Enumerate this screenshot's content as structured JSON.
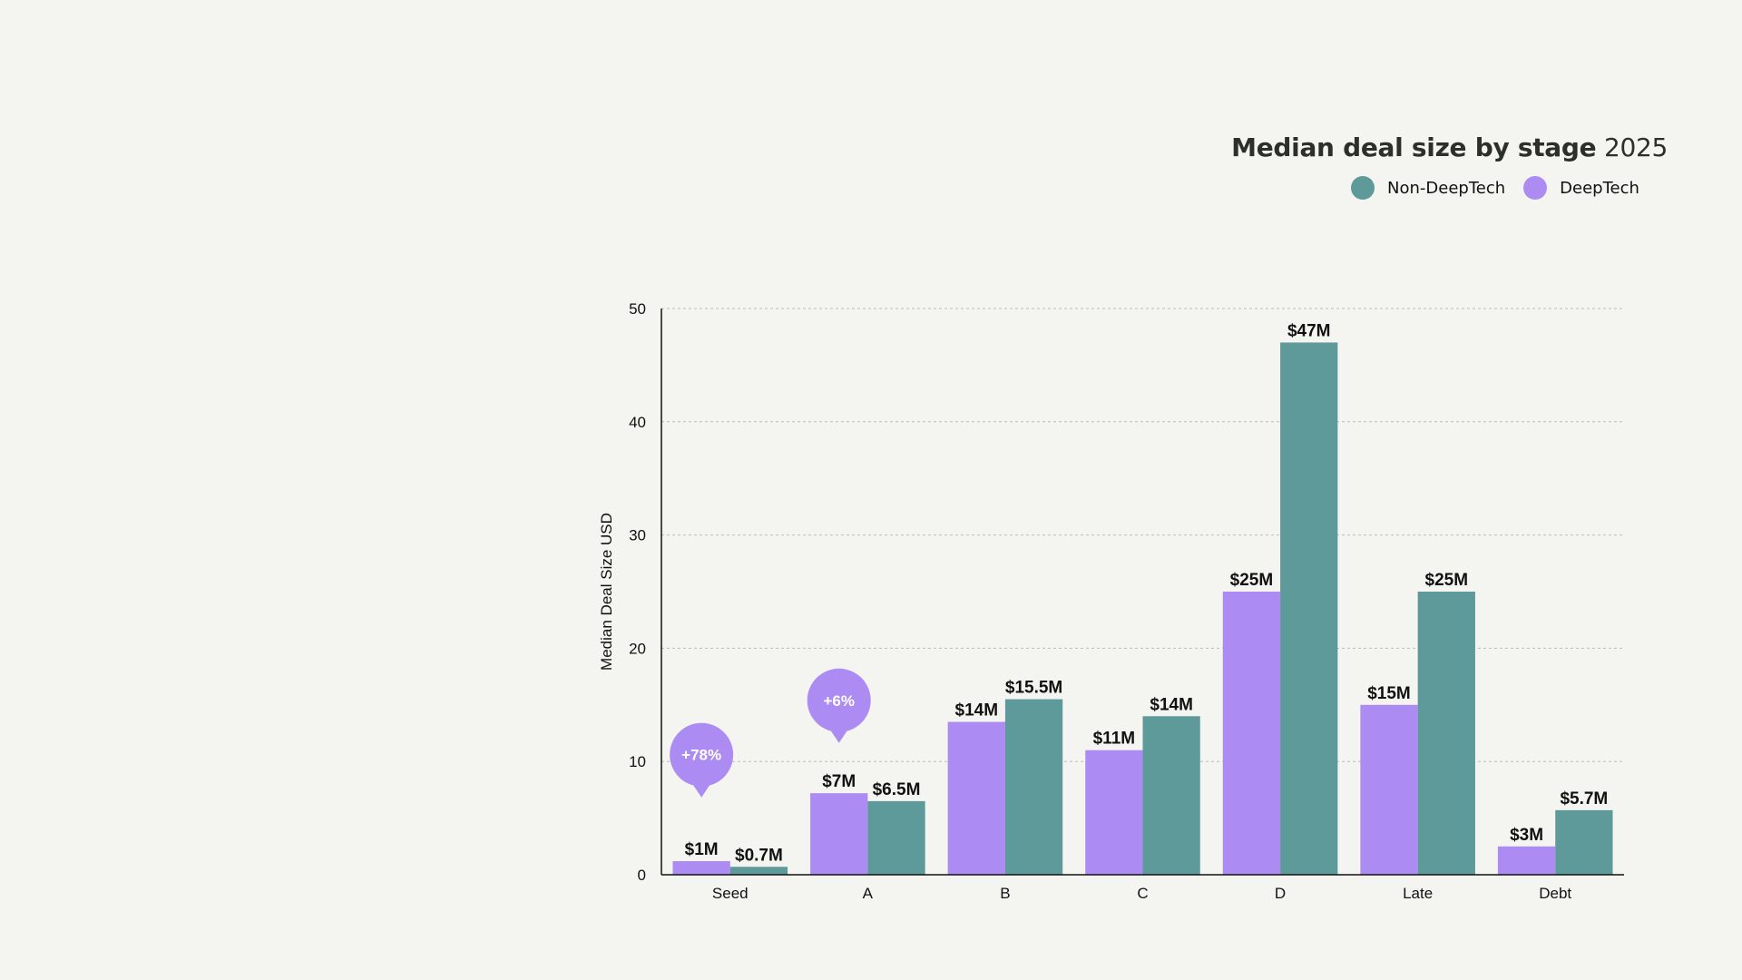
{
  "chart_data": {
    "type": "bar",
    "title": "Median deal size by stage",
    "title_year": "2025",
    "xlabel": "",
    "ylabel": "Median Deal Size USD",
    "ylim": [
      0,
      50
    ],
    "yticks": [
      0,
      10,
      20,
      30,
      40,
      50
    ],
    "grid": "horizontal-dotted",
    "legend_position": "top-right",
    "categories": [
      "Seed",
      "A",
      "B",
      "C",
      "D",
      "Late",
      "Debt"
    ],
    "series": [
      {
        "name": "DeepTech",
        "color": "#ac8cf2",
        "values": [
          1.2,
          7.2,
          13.5,
          11,
          25,
          15,
          2.5
        ],
        "labels": [
          "$1M",
          "$7M",
          "$14M",
          "$11M",
          "$25M",
          "$15M",
          "$3M"
        ]
      },
      {
        "name": "Non-DeepTech",
        "color": "#5e9a9a",
        "values": [
          0.7,
          6.5,
          15.5,
          14,
          47,
          25,
          5.7
        ],
        "labels": [
          "$0.7M",
          "$6.5M",
          "$15.5M",
          "$14M",
          "$47M",
          "$25M",
          "$5.7M"
        ]
      }
    ],
    "legend": [
      {
        "name": "Non-DeepTech",
        "color": "#5e9a9a"
      },
      {
        "name": "DeepTech",
        "color": "#ac8cf2"
      }
    ],
    "annotations": [
      {
        "category": "Seed",
        "text": "+78%",
        "anchor_value": 10.6,
        "color": "#ac8cf2"
      },
      {
        "category": "A",
        "text": "+6%",
        "anchor_value": 15.4,
        "color": "#ac8cf2"
      }
    ]
  }
}
